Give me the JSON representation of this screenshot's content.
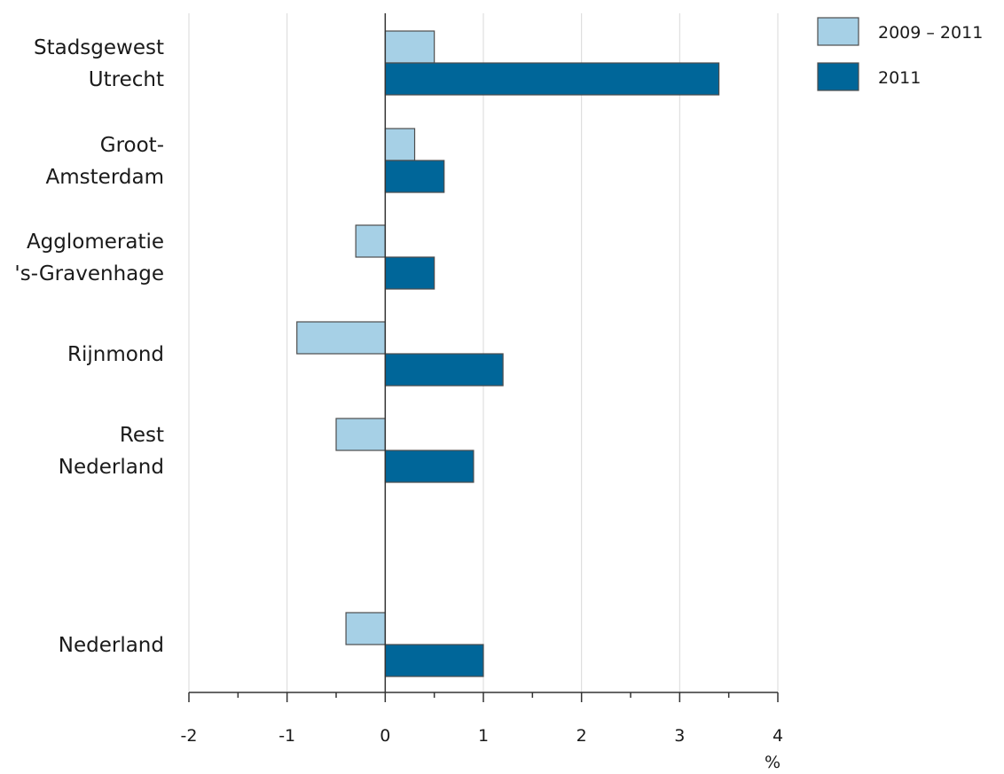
{
  "chart_data": {
    "type": "bar",
    "orientation": "horizontal",
    "categories": [
      [
        "Stadsgewest",
        "Utrecht"
      ],
      [
        "Groot-",
        "Amsterdam"
      ],
      [
        "Agglomeratie",
        "'s-Gravenhage"
      ],
      [
        "Rijnmond"
      ],
      [
        "Rest",
        "Nederland"
      ],
      [
        "Nederland"
      ]
    ],
    "series": [
      {
        "name": "2009 – 2011",
        "color": "#a6d0e6",
        "values": [
          0.5,
          0.3,
          -0.3,
          -0.9,
          -0.5,
          -0.4
        ]
      },
      {
        "name": "2011",
        "color": "#006699",
        "values": [
          3.4,
          0.6,
          0.5,
          1.2,
          0.9,
          1.0
        ]
      }
    ],
    "xlim": [
      -2,
      4
    ],
    "xticks": [
      "-2",
      "-1",
      "0",
      "1",
      "2",
      "3",
      "4"
    ],
    "xlabel": "%",
    "grid": true,
    "legend_position": "top-right"
  }
}
